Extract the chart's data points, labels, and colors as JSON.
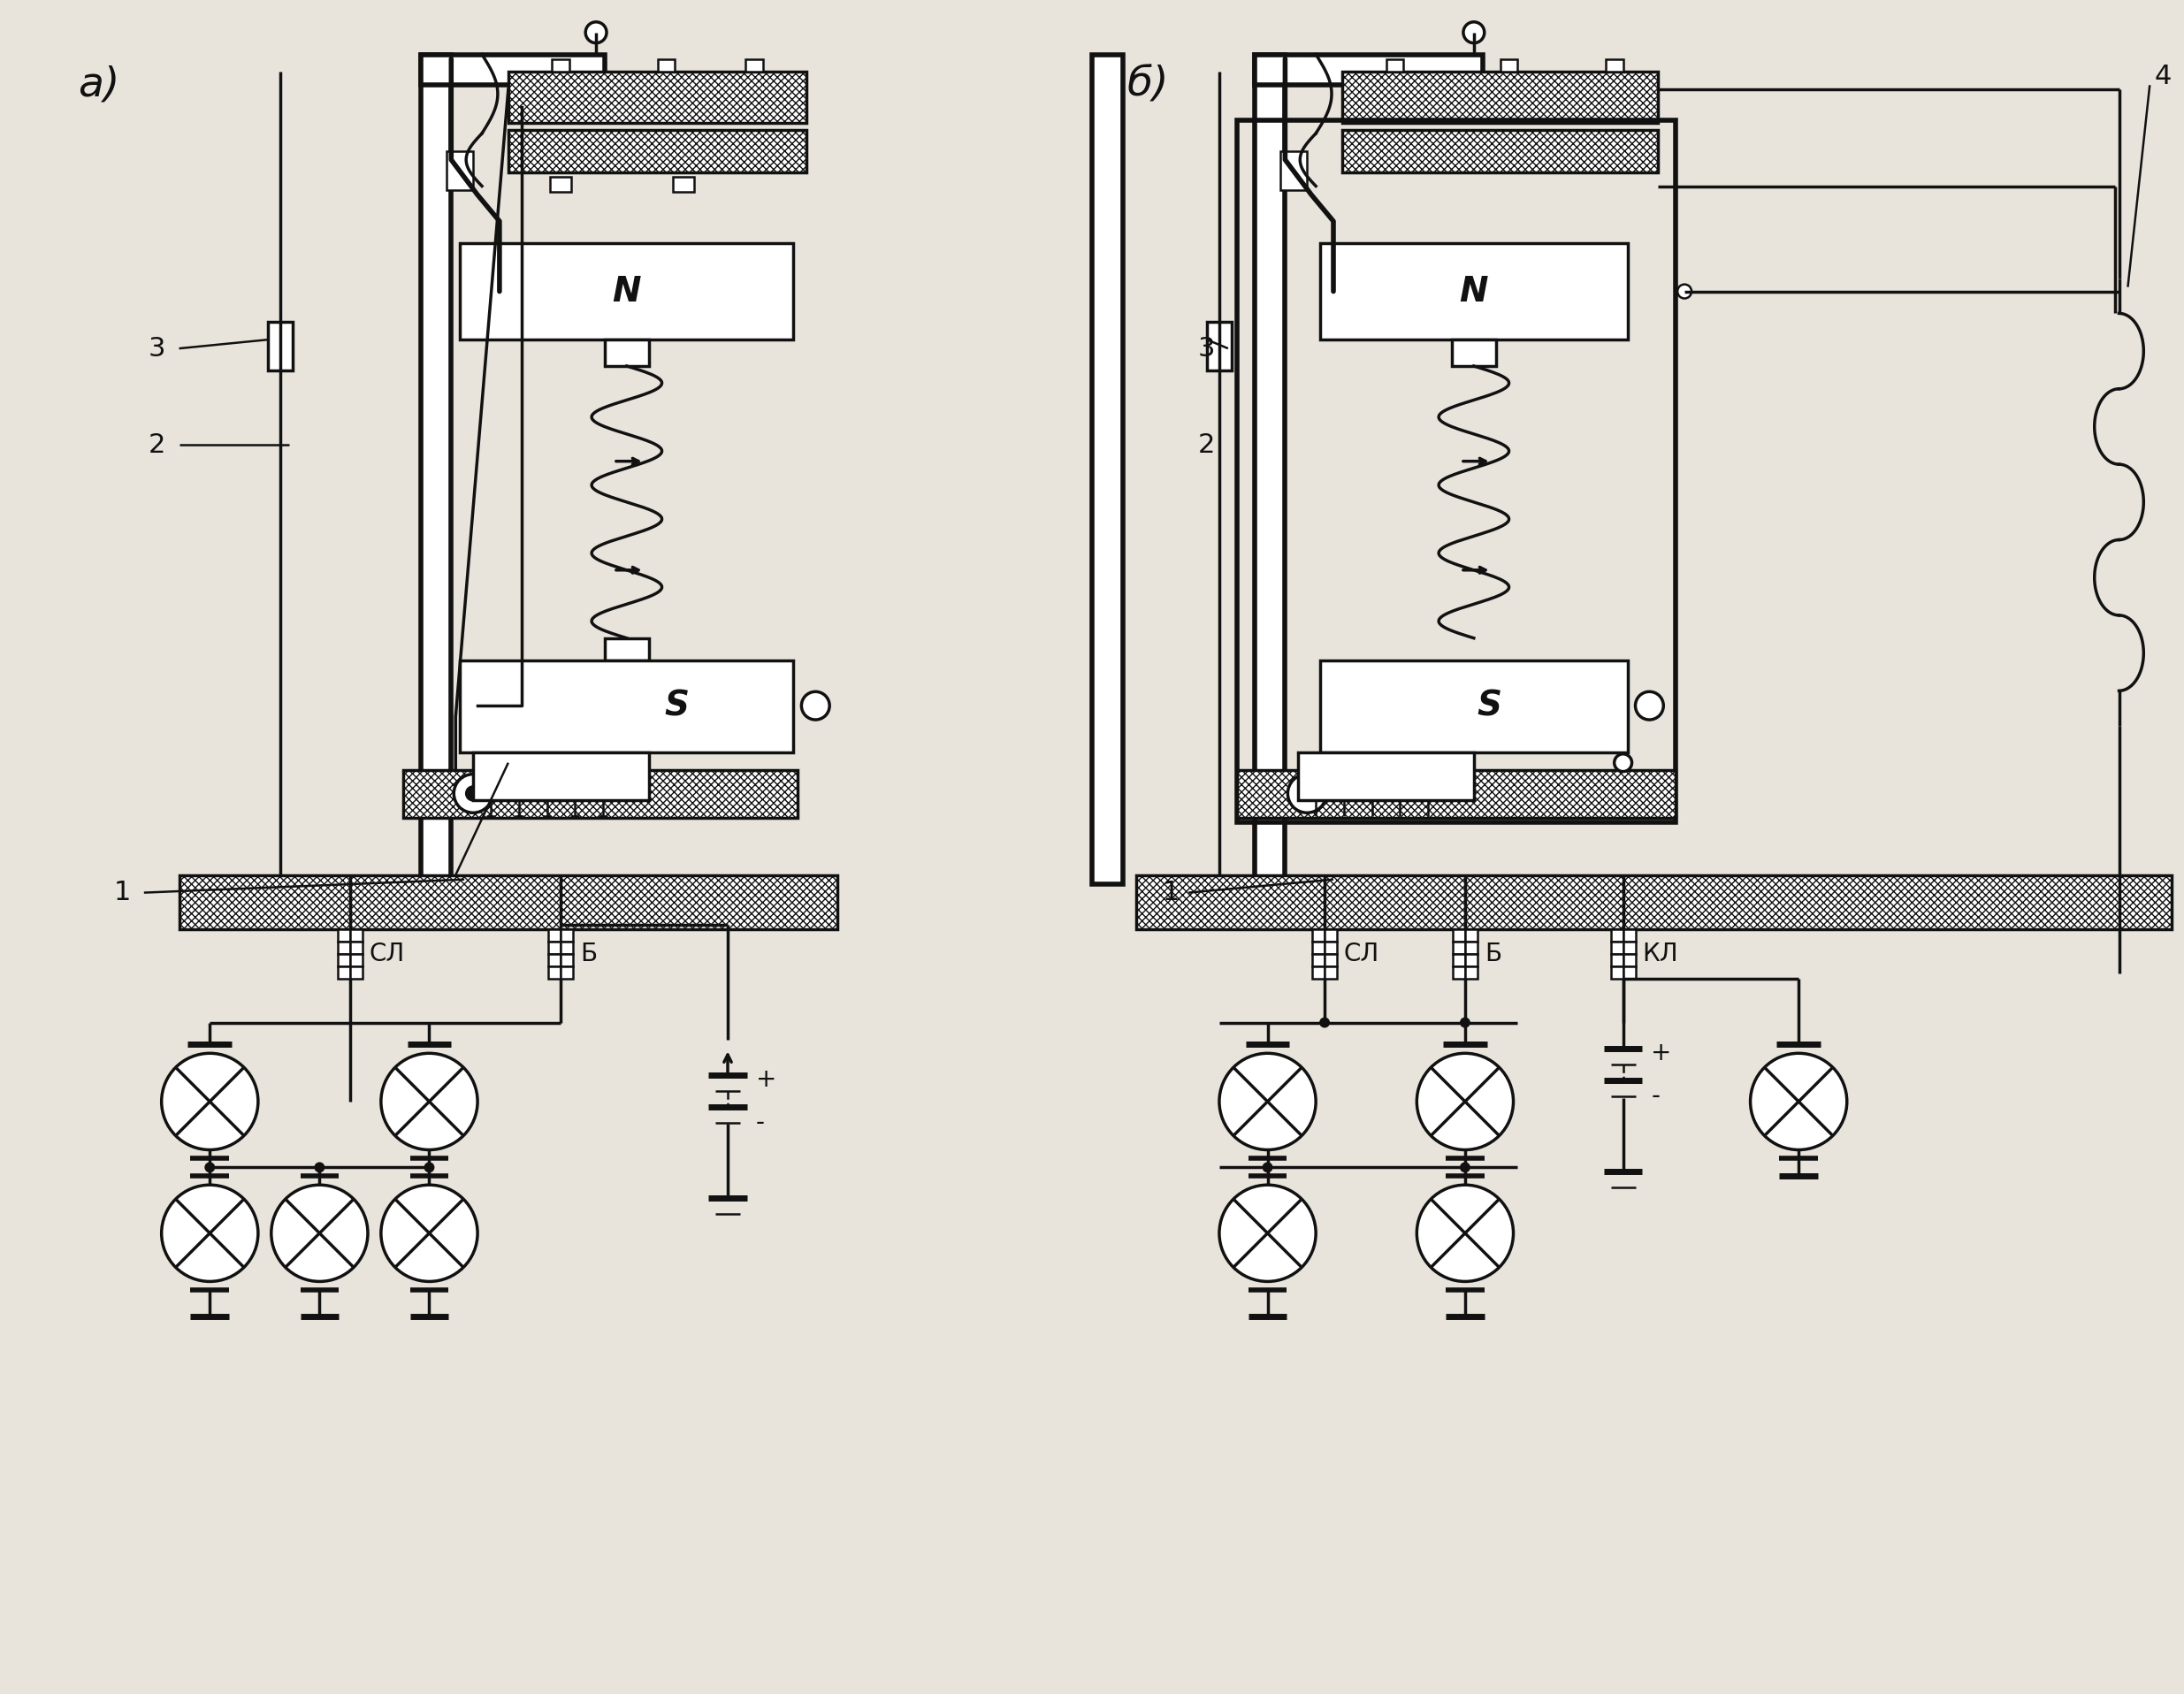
{
  "bg_color": "#e8e4dc",
  "line_color": "#111111",
  "label_a": "а)",
  "label_b": "б)",
  "label_N": "N",
  "label_S": "S",
  "label_1a": "1",
  "label_2a": "2",
  "label_3a": "3",
  "label_1b": "1",
  "label_2b": "2",
  "label_3b": "3",
  "label_4b": "4",
  "label_SL_a": "СЛ",
  "label_B_a": "Б",
  "label_SL_b": "СЛ",
  "label_B_b": "Б",
  "label_KL_b": "КЛ",
  "plus_sign": "+",
  "minus_sign": "-"
}
